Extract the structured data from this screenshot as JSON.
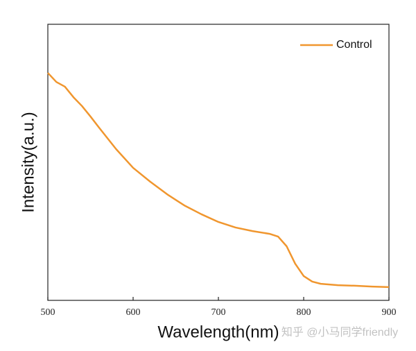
{
  "chart_data": {
    "type": "line",
    "x_label": "Wavelength(nm)",
    "y_label": "Intensity(a.u.)",
    "watermark": "知乎 @小马同学friendly",
    "x": [
      500,
      510,
      520,
      530,
      540,
      550,
      560,
      580,
      600,
      620,
      640,
      660,
      680,
      700,
      720,
      740,
      760,
      770,
      780,
      790,
      800,
      810,
      820,
      840,
      860,
      880,
      900
    ],
    "series": [
      {
        "name": "Control",
        "color": "#f0962e",
        "values": [
          82.4,
          79.1,
          77.4,
          73.6,
          70.4,
          66.6,
          62.6,
          54.8,
          48.0,
          43.0,
          38.4,
          34.4,
          31.2,
          28.4,
          26.4,
          25.1,
          24.1,
          23.1,
          19.6,
          13.3,
          8.8,
          6.8,
          6.0,
          5.5,
          5.3,
          5.0,
          4.8
        ]
      }
    ],
    "xlim": [
      500,
      900
    ],
    "xticks": [
      500,
      600,
      700,
      800,
      900
    ],
    "ylim": [
      0,
      100
    ],
    "legend": "upper right"
  }
}
